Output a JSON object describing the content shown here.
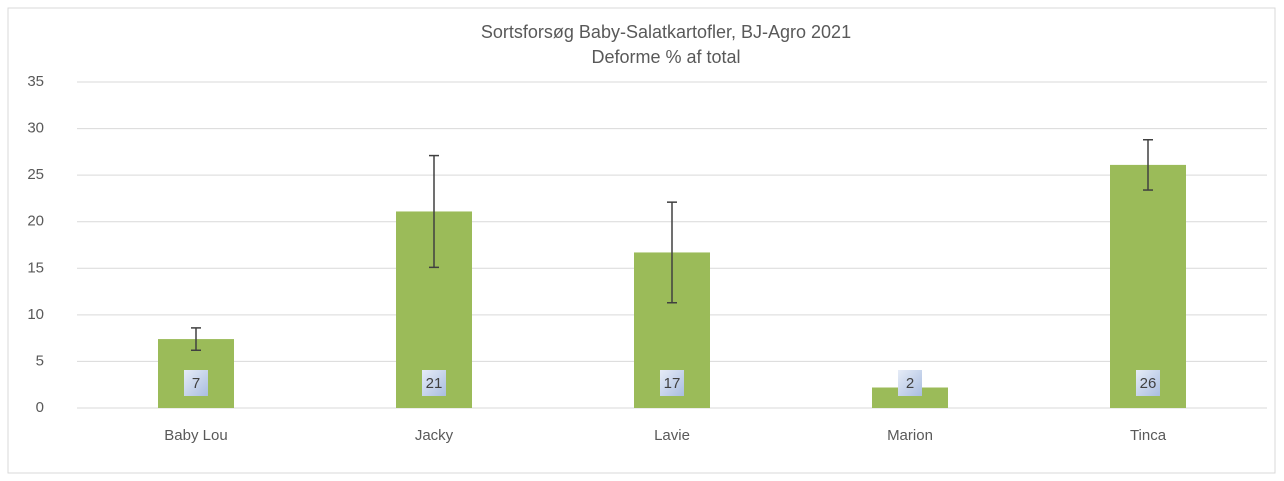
{
  "chart_data": {
    "type": "bar",
    "title": "Sortsforsøg Baby-Salatkartofler, BJ-Agro 2021",
    "subtitle": "Deforme % af total",
    "categories": [
      "Baby Lou",
      "Jacky",
      "Lavie",
      "Marion",
      "Tinca"
    ],
    "values": [
      7.4,
      21.1,
      16.7,
      2.2,
      26.1
    ],
    "value_labels": [
      "7",
      "21",
      "17",
      "2",
      "26"
    ],
    "errors": [
      1.2,
      6.0,
      5.4,
      null,
      2.7
    ],
    "color": "#9bbb59",
    "ylim": [
      0,
      35
    ],
    "yticks": [
      0,
      5,
      10,
      15,
      20,
      25,
      30,
      35
    ],
    "grid": true
  }
}
